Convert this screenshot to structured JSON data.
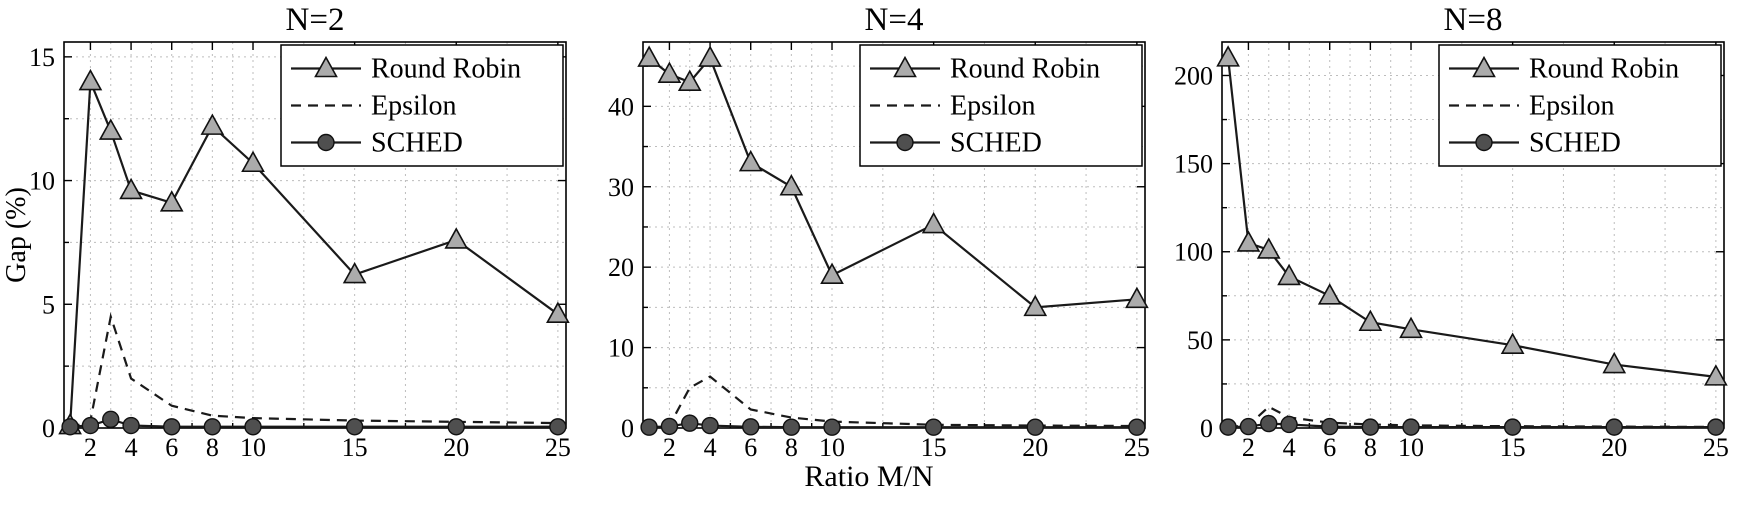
{
  "xlabel": "Ratio M/N",
  "ylabel": "Gap (%)",
  "legend": {
    "position": "top-right-inside",
    "entries": [
      "Round Robin",
      "Epsilon",
      "SCHED"
    ]
  },
  "colors": {
    "line": "#1a1a1a",
    "grid": "#bdbdbd",
    "triangle_fill": "#ababab",
    "circle_fill": "#4f4f4f",
    "legend_bg": "#ffffff"
  },
  "chart_data": [
    {
      "type": "line",
      "title": "N=2",
      "x": [
        1,
        2,
        3,
        4,
        6,
        8,
        10,
        15,
        20,
        25
      ],
      "xlim": [
        0.7,
        25.4
      ],
      "xticks": [
        2,
        4,
        6,
        8,
        10,
        15,
        20,
        25
      ],
      "xminor": [
        3,
        5,
        7,
        9,
        12.5,
        17.5,
        22.5
      ],
      "ylim": [
        0,
        15.6
      ],
      "yticks": [
        0,
        5,
        10,
        15
      ],
      "yminor": [
        2.5,
        7.5,
        12.5
      ],
      "series": [
        {
          "name": "Round Robin",
          "marker": "triangle",
          "dash": false,
          "values": [
            0.1,
            14.0,
            12.0,
            9.6,
            9.1,
            12.2,
            10.7,
            6.2,
            7.6,
            4.6
          ]
        },
        {
          "name": "Epsilon",
          "marker": "none",
          "dash": true,
          "values": [
            0.0,
            0.3,
            4.5,
            2.0,
            0.9,
            0.5,
            0.4,
            0.3,
            0.25,
            0.2
          ]
        },
        {
          "name": "SCHED",
          "marker": "circle",
          "dash": false,
          "values": [
            0.05,
            0.1,
            0.35,
            0.1,
            0.05,
            0.05,
            0.05,
            0.05,
            0.05,
            0.05
          ]
        }
      ]
    },
    {
      "type": "line",
      "title": "N=4",
      "x": [
        1,
        2,
        3,
        4,
        6,
        8,
        10,
        15,
        20,
        25
      ],
      "xlim": [
        0.7,
        25.4
      ],
      "xticks": [
        2,
        4,
        6,
        8,
        10,
        15,
        20,
        25
      ],
      "xminor": [
        3,
        5,
        7,
        9,
        12.5,
        17.5,
        22.5
      ],
      "ylim": [
        0,
        48
      ],
      "yticks": [
        0,
        10,
        20,
        30,
        40
      ],
      "yminor": [
        5,
        15,
        25,
        35,
        45
      ],
      "series": [
        {
          "name": "Round Robin",
          "marker": "triangle",
          "dash": false,
          "values": [
            46.0,
            44.0,
            43.0,
            46.0,
            33.0,
            30.0,
            19.0,
            25.3,
            15.0,
            16.0
          ]
        },
        {
          "name": "Epsilon",
          "marker": "none",
          "dash": true,
          "values": [
            0.0,
            0.3,
            5.0,
            6.4,
            2.3,
            1.3,
            0.8,
            0.4,
            0.3,
            0.25
          ]
        },
        {
          "name": "SCHED",
          "marker": "circle",
          "dash": false,
          "values": [
            0.1,
            0.2,
            0.6,
            0.3,
            0.15,
            0.1,
            0.1,
            0.1,
            0.1,
            0.1
          ]
        }
      ]
    },
    {
      "type": "line",
      "title": "N=8",
      "x": [
        1,
        2,
        3,
        4,
        6,
        8,
        10,
        15,
        20,
        25
      ],
      "xlim": [
        0.7,
        25.4
      ],
      "xticks": [
        2,
        4,
        6,
        8,
        10,
        15,
        20,
        25
      ],
      "xminor": [
        3,
        5,
        7,
        9,
        12.5,
        17.5,
        22.5
      ],
      "ylim": [
        0,
        219
      ],
      "yticks": [
        0,
        50,
        100,
        150,
        200
      ],
      "yminor": [
        25,
        75,
        125,
        175
      ],
      "series": [
        {
          "name": "Round Robin",
          "marker": "triangle",
          "dash": false,
          "values": [
            210,
            105,
            101,
            86,
            75,
            60,
            56,
            47,
            36,
            29
          ]
        },
        {
          "name": "Epsilon",
          "marker": "none",
          "dash": true,
          "values": [
            0.5,
            1.5,
            12,
            6,
            3,
            2,
            1.5,
            1.0,
            0.8,
            0.6
          ]
        },
        {
          "name": "SCHED",
          "marker": "circle",
          "dash": false,
          "values": [
            0.5,
            0.8,
            2.5,
            2.0,
            0.8,
            0.5,
            0.5,
            0.5,
            0.5,
            0.5
          ]
        }
      ]
    }
  ]
}
